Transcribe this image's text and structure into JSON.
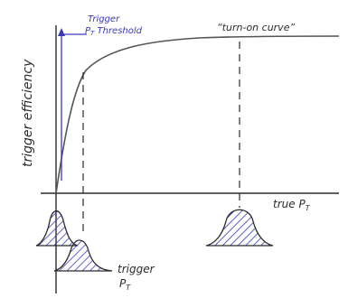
{
  "labels": {
    "y_axis": "trigger efficiency",
    "x_axis": "true P",
    "x_axis_sub": "T",
    "turn_on": "“turn-on curve”",
    "threshold_line1": "Trigger",
    "threshold_line2": "P",
    "threshold_line2_sub": "T",
    "threshold_line2_rest": " Threshold",
    "trigger_pt_line1": "trigger",
    "trigger_pt_line2": "P",
    "trigger_pt_line2_sub": "T"
  },
  "colors": {
    "ink": "#2b2b2b",
    "accent": "#3a3ab8",
    "hatch": "#3a3ab8"
  }
}
